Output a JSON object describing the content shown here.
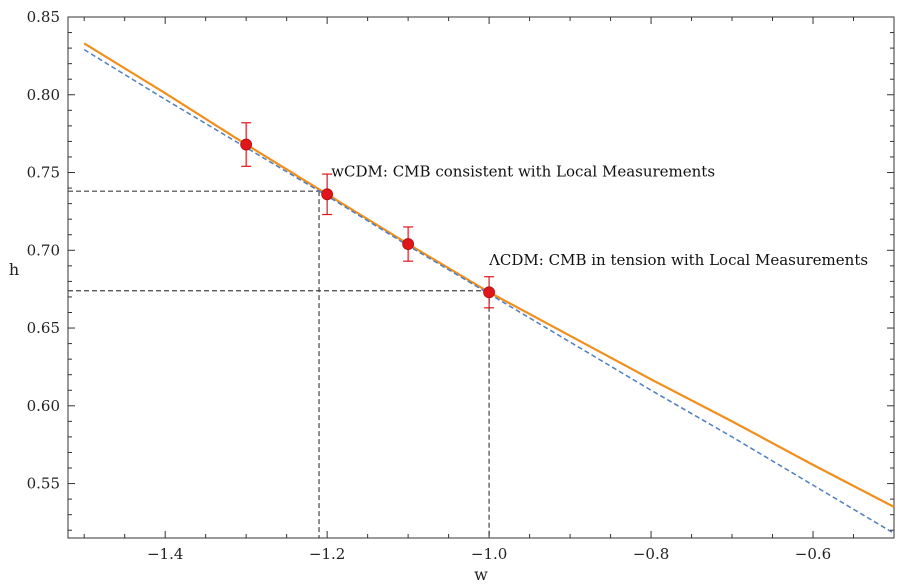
{
  "chart_data": {
    "type": "line",
    "xlabel": "w",
    "ylabel": "h",
    "xlim": [
      -1.52,
      -0.5
    ],
    "ylim": [
      0.515,
      0.85
    ],
    "x_ticks": [
      -1.4,
      -1.2,
      -1.0,
      -0.8,
      -0.6
    ],
    "x_tick_labels": [
      "−1.4",
      "−1.2",
      "−1.0",
      "−0.8",
      "−0.6"
    ],
    "y_ticks": [
      0.55,
      0.6,
      0.65,
      0.7,
      0.75,
      0.8,
      0.85
    ],
    "y_tick_labels": [
      "0.55",
      "0.60",
      "0.65",
      "0.70",
      "0.75",
      "0.80",
      "0.85"
    ],
    "grid": false,
    "series": [
      {
        "style": "solid",
        "color": "#f28e1c",
        "x": [
          -1.5,
          -1.4,
          -1.3,
          -1.2,
          -1.1,
          -1.0,
          -0.9,
          -0.8,
          -0.7,
          -0.6,
          -0.5
        ],
        "y": [
          0.833,
          0.801,
          0.768,
          0.736,
          0.704,
          0.673,
          0.645,
          0.617,
          0.59,
          0.562,
          0.535
        ]
      },
      {
        "style": "dashed",
        "color": "#4f7fc0",
        "x": [
          -1.5,
          -1.4,
          -1.3,
          -1.2,
          -1.1,
          -1.0,
          -0.9,
          -0.8,
          -0.7,
          -0.6,
          -0.5
        ],
        "y": [
          0.829,
          0.797,
          0.766,
          0.735,
          0.703,
          0.672,
          0.641,
          0.61,
          0.58,
          0.549,
          0.518
        ]
      }
    ],
    "points": {
      "color": "#e0161b",
      "x": [
        -1.3,
        -1.2,
        -1.1,
        -1.0
      ],
      "y": [
        0.768,
        0.736,
        0.704,
        0.673
      ],
      "err": [
        0.014,
        0.013,
        0.011,
        0.01
      ]
    },
    "reference_lines": [
      {
        "x": -1.21,
        "y": 0.738
      },
      {
        "x": -1.0,
        "y": 0.674
      }
    ],
    "annotations": [
      {
        "text": "wCDM: CMB consistent with Local Measurements",
        "x": -1.195,
        "y": 0.7475
      },
      {
        "text": "ΛCDM: CMB in tension with Local Measurements",
        "x": -1.0,
        "y": 0.6905
      }
    ]
  }
}
